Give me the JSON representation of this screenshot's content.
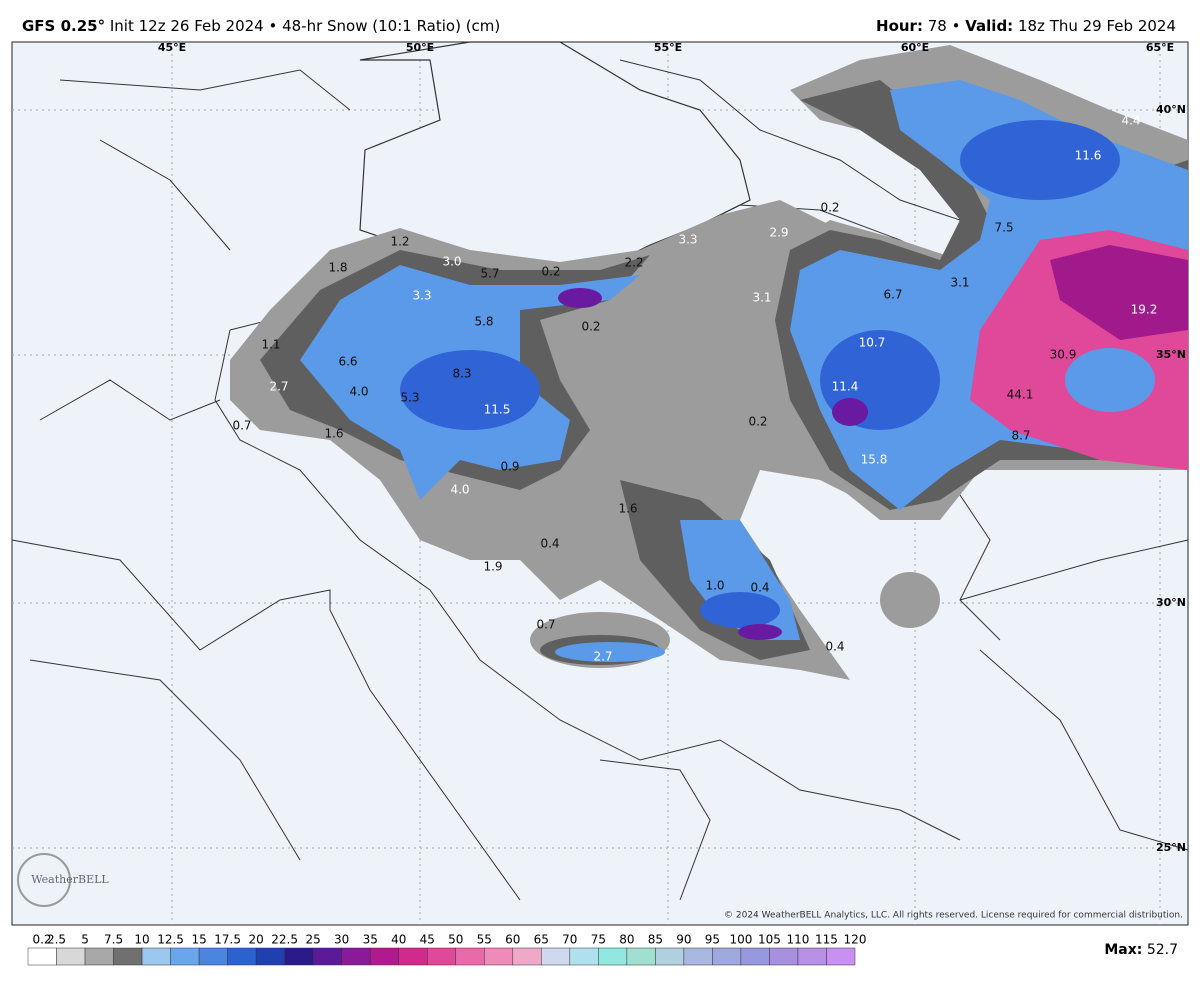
{
  "header": {
    "model": "GFS 0.25°",
    "description": "Init 12z 26 Feb 2024 • 48-hr Snow (10:1 Ratio) (cm)",
    "hour_label": "Hour:",
    "hour": "78",
    "separator": "•",
    "valid_label": "Valid:",
    "valid": "18z Thu 29 Feb 2024"
  },
  "map": {
    "lon_labels": [
      "45°E",
      "50°E",
      "55°E",
      "60°E",
      "65°E"
    ],
    "lat_labels": [
      "40°N",
      "35°N",
      "30°N",
      "25°N"
    ],
    "snow_labels": [
      "1.2",
      "3.0",
      "1.8",
      "5.7",
      "0.2",
      "2.2",
      "3.3",
      "2.9",
      "0.2",
      "7.5",
      "11.6",
      "4.4",
      "3.3",
      "5.8",
      "0.2",
      "3.1",
      "6.7",
      "3.1",
      "19.2",
      "1.1",
      "6.6",
      "8.3",
      "10.7",
      "30.9",
      "2.7",
      "4.0",
      "5.3",
      "11.5",
      "11.4",
      "44.1",
      "0.7",
      "1.6",
      "0.2",
      "8.7",
      "0.9",
      "15.8",
      "4.0",
      "1.6",
      "0.4",
      "1.9",
      "1.0",
      "0.4",
      "0.7",
      "0.4",
      "2.7"
    ],
    "copyright": "© 2024 WeatherBELL Analytics, LLC. All rights reserved. License required for commercial distribution.",
    "logo": "WeatherBELL"
  },
  "colorbar": {
    "labels": [
      "0.2",
      "2.5",
      "5",
      "7.5",
      "10",
      "12.5",
      "15",
      "17.5",
      "20",
      "22.5",
      "25",
      "30",
      "35",
      "40",
      "45",
      "50",
      "55",
      "60",
      "65",
      "70",
      "75",
      "80",
      "85",
      "90",
      "95",
      "100",
      "105",
      "110",
      "115",
      "120"
    ],
    "max_label": "Max:",
    "max": "52.7"
  }
}
